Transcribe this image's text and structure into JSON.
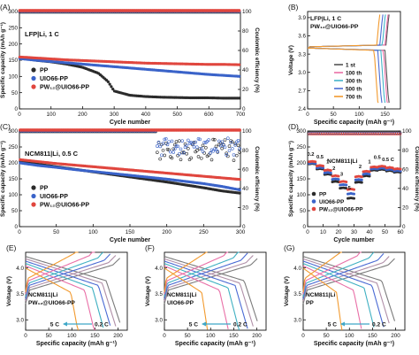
{
  "panels": {
    "A": {
      "tag": "(A)",
      "label": "LFP|Li, 1 C",
      "xlabel": "Cycle number",
      "ylabel": "Specific capacity (mAh g⁻¹)",
      "ylabel_right": "Coulombic efficiency (%)",
      "xticks": [
        "0",
        "100",
        "200",
        "300",
        "400",
        "500",
        "600",
        "700"
      ],
      "yticks": [
        "0",
        "50",
        "100",
        "150",
        "200",
        "250",
        "300"
      ],
      "yticks_right": [
        "0",
        "20",
        "40",
        "60",
        "80",
        "100"
      ],
      "legend": [
        "PP",
        "UIO66-PP",
        "PW₁₂@UIO66-PP"
      ]
    },
    "B": {
      "tag": "(B)",
      "label1": "LFP|Li, 1 C",
      "label2": "PW₁₂@UIO66-PP",
      "xlabel": "Specific capacity (mAh g⁻¹)",
      "ylabel": "Voltage (V)",
      "xticks": [
        "0",
        "50",
        "100",
        "150"
      ],
      "yticks": [
        "2.4",
        "2.7",
        "3.0",
        "3.3",
        "3.6",
        "3.9"
      ],
      "legend": [
        "1 st",
        "100 th",
        "300 th",
        "500 th",
        "700 th"
      ]
    },
    "C": {
      "tag": "(C)",
      "label": "NCM811|Li, 0.5 C",
      "xlabel": "Cycle number",
      "ylabel": "Specific capacity (mAh g⁻¹)",
      "ylabel_right": "Coulombic efficiency (%)",
      "xticks": [
        "0",
        "50",
        "100",
        "150",
        "200",
        "250",
        "300"
      ],
      "yticks": [
        "0",
        "50",
        "100",
        "150",
        "200",
        "250",
        "300"
      ],
      "yticks_right": [
        "0",
        "20",
        "40",
        "60",
        "80",
        "100"
      ],
      "legend": [
        "PP",
        "UIO66-PP",
        "PW₁₂@UIO66-PP"
      ]
    },
    "D": {
      "tag": "(D)",
      "label": "NCM811|Li",
      "xlabel": "Cycle number",
      "ylabel": "Specific capacity (mAh g⁻¹)",
      "ylabel_right": "Coulombic efficiency (%)",
      "xticks": [
        "0",
        "10",
        "20",
        "30",
        "40",
        "50",
        "60"
      ],
      "yticks": [
        "0",
        "50",
        "100",
        "150",
        "200",
        "250",
        "300"
      ],
      "yticks_right": [
        "0",
        "20",
        "40",
        "60",
        "80",
        "100"
      ],
      "legend": [
        "PP",
        "UIO66-PP",
        "PW₁₂@UIO66-PP"
      ],
      "rate_labels": [
        "0.2",
        "0.5",
        "1",
        "2",
        "3",
        "5",
        "2",
        "1",
        "0.5",
        "0.5 C"
      ]
    },
    "E": {
      "tag": "(E)",
      "label1": "NCM811|Li",
      "label2": "PW₁₂@UIO66-PP",
      "xlabel": "Specific capacity (mAh g⁻¹)",
      "ylabel": "Voltage (V)",
      "xticks": [
        "0",
        "50",
        "100",
        "150",
        "200"
      ],
      "yticks": [
        "3.0",
        "3.5",
        "4.0"
      ],
      "rate_left": "5 C",
      "rate_right": "0.2 C"
    },
    "F": {
      "tag": "(F)",
      "label1": "NCM811|Li",
      "label2": "UIO66-PP",
      "xlabel": "Specific capacity (mAh g⁻¹)",
      "ylabel": "Voltage (V)",
      "xticks": [
        "0",
        "50",
        "100",
        "150",
        "200"
      ],
      "yticks": [
        "3.0",
        "3.5",
        "4.0"
      ],
      "rate_left": "5 C",
      "rate_right": "0.2 C"
    },
    "G": {
      "tag": "(G)",
      "label1": "NCM811|Li",
      "label2": "PP",
      "xlabel": "Specific capacity (mAh g⁻¹)",
      "ylabel": "Voltage (V)",
      "xticks": [
        "0",
        "50",
        "100",
        "150",
        "200"
      ],
      "yticks": [
        "3.0",
        "3.5",
        "4.0"
      ],
      "rate_left": "5 C",
      "rate_right": "0.2 C"
    }
  },
  "colors": {
    "PP": "#2b2b2b",
    "UIO66-PP": "#3a63c9",
    "PW12@UIO66-PP": "#e0463e",
    "cycles": [
      "#555555",
      "#e96fa7",
      "#43b3c9",
      "#4a6ad4",
      "#f29a2e"
    ],
    "rates": [
      "#7b7b7b",
      "#b08fa8",
      "#4a6ad4",
      "#3fb0c2",
      "#e96fa7",
      "#f29a2e"
    ]
  },
  "chart_data": [
    {
      "panel": "A",
      "type": "scatter",
      "xlim": [
        0,
        700
      ],
      "ylim": [
        0,
        300
      ],
      "y2lim": [
        0,
        100
      ],
      "series": [
        {
          "name": "PP",
          "x": [
            1,
            50,
            100,
            150,
            200,
            250,
            280,
            300,
            350,
            400,
            450,
            500,
            550,
            600,
            650,
            700
          ],
          "y": [
            158,
            150,
            145,
            138,
            128,
            110,
            85,
            55,
            42,
            38,
            36,
            35,
            34,
            34,
            33,
            33
          ]
        },
        {
          "name": "UIO66-PP",
          "x": [
            1,
            50,
            100,
            150,
            200,
            250,
            300,
            350,
            400,
            450,
            500,
            550,
            600,
            650,
            700
          ],
          "y": [
            155,
            150,
            146,
            142,
            138,
            134,
            130,
            126,
            122,
            118,
            114,
            110,
            106,
            103,
            100
          ]
        },
        {
          "name": "PW₁₂@UIO66-PP",
          "x": [
            1,
            50,
            100,
            150,
            200,
            250,
            300,
            350,
            400,
            450,
            500,
            550,
            600,
            650,
            700
          ],
          "y": [
            160,
            157,
            154,
            151,
            149,
            147,
            145,
            143,
            141,
            140,
            139,
            138,
            137,
            137,
            136
          ]
        }
      ],
      "ce": {
        "x": [
          1,
          100,
          200,
          300,
          400,
          500,
          600,
          700
        ],
        "y": [
          99.5,
          99.8,
          99.8,
          99.7,
          99.7,
          99.6,
          99.6,
          99.6
        ]
      }
    },
    {
      "panel": "B",
      "type": "line",
      "xlim": [
        0,
        180
      ],
      "ylim": [
        2.4,
        4.0
      ],
      "series": [
        {
          "name": "1 st",
          "charge_end": 158,
          "discharge_end": 158
        },
        {
          "name": "100 th",
          "charge_end": 156,
          "discharge_end": 155
        },
        {
          "name": "300 th",
          "charge_end": 151,
          "discharge_end": 150
        },
        {
          "name": "500 th",
          "charge_end": 146,
          "discharge_end": 144
        },
        {
          "name": "700 th",
          "charge_end": 140,
          "discharge_end": 137
        }
      ]
    },
    {
      "panel": "C",
      "type": "scatter",
      "xlim": [
        0,
        300
      ],
      "ylim": [
        0,
        300
      ],
      "y2lim": [
        0,
        100
      ],
      "series": [
        {
          "name": "PP",
          "x": [
            1,
            25,
            50,
            75,
            100,
            125,
            150,
            175,
            200,
            225,
            250,
            275,
            300
          ],
          "y": [
            205,
            196,
            188,
            180,
            172,
            164,
            156,
            148,
            140,
            131,
            122,
            112,
            105
          ]
        },
        {
          "name": "UIO66-PP",
          "x": [
            1,
            25,
            50,
            75,
            100,
            125,
            150,
            175,
            200,
            225,
            250,
            275,
            300
          ],
          "y": [
            200,
            192,
            186,
            179,
            173,
            167,
            161,
            155,
            149,
            142,
            135,
            126,
            115
          ]
        },
        {
          "name": "PW₁₂@UIO66-PP",
          "x": [
            1,
            25,
            50,
            75,
            100,
            125,
            150,
            175,
            200,
            225,
            250,
            275,
            300
          ],
          "y": [
            210,
            204,
            198,
            193,
            188,
            183,
            178,
            173,
            168,
            163,
            158,
            153,
            148
          ]
        }
      ],
      "ce": {
        "x": [
          1,
          50,
          100,
          150,
          200,
          250,
          300
        ],
        "y": [
          99.3,
          99.5,
          99.5,
          99.4,
          99.4,
          99.3,
          99.3
        ]
      }
    },
    {
      "panel": "D",
      "type": "scatter",
      "xlim": [
        0,
        60
      ],
      "ylim": [
        0,
        300
      ],
      "y2lim": [
        0,
        100
      ],
      "series": [
        {
          "name": "PP",
          "x": [
            3,
            8,
            13,
            18,
            23,
            28,
            33,
            38,
            43,
            48,
            53,
            58
          ],
          "y": [
            198,
            182,
            165,
            142,
            122,
            90,
            140,
            160,
            178,
            180,
            176,
            172
          ]
        },
        {
          "name": "UIO66-PP",
          "x": [
            3,
            8,
            13,
            18,
            23,
            28,
            33,
            38,
            43,
            48,
            53,
            58
          ],
          "y": [
            200,
            186,
            170,
            150,
            132,
            104,
            148,
            166,
            182,
            184,
            180,
            176
          ]
        },
        {
          "name": "PW₁₂@UIO66-PP",
          "x": [
            3,
            8,
            13,
            18,
            23,
            28,
            33,
            38,
            43,
            48,
            53,
            58
          ],
          "y": [
            205,
            192,
            178,
            160,
            142,
            118,
            158,
            174,
            188,
            190,
            186,
            182
          ]
        }
      ]
    },
    {
      "panel": "E",
      "type": "line",
      "xlim": [
        0,
        220
      ],
      "ylim": [
        2.8,
        4.3
      ],
      "caps": [
        205,
        195,
        185,
        170,
        150,
        115
      ]
    },
    {
      "panel": "F",
      "type": "line",
      "xlim": [
        0,
        220
      ],
      "ylim": [
        2.8,
        4.3
      ],
      "caps": [
        203,
        192,
        180,
        162,
        140,
        95
      ]
    },
    {
      "panel": "G",
      "type": "line",
      "xlim": [
        0,
        220
      ],
      "ylim": [
        2.8,
        4.3
      ],
      "caps": [
        200,
        188,
        175,
        155,
        128,
        85
      ]
    }
  ]
}
